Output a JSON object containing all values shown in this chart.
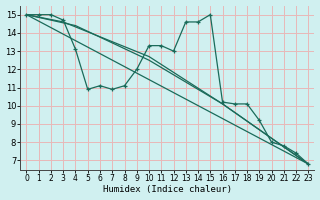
{
  "xlabel": "Humidex (Indice chaleur)",
  "xlim": [
    -0.5,
    23.5
  ],
  "ylim": [
    6.5,
    15.5
  ],
  "yticks": [
    7,
    8,
    9,
    10,
    11,
    12,
    13,
    14,
    15
  ],
  "xticks": [
    0,
    1,
    2,
    3,
    4,
    5,
    6,
    7,
    8,
    9,
    10,
    11,
    12,
    13,
    14,
    15,
    16,
    17,
    18,
    19,
    20,
    21,
    22,
    23
  ],
  "bg_color": "#d0f0f0",
  "grid_color": "#e8b8b8",
  "line_color": "#1a6b5a",
  "zigzag": {
    "x": [
      0,
      1,
      2,
      3,
      4,
      5,
      6,
      7,
      8,
      9,
      10,
      11,
      12,
      13,
      14,
      15,
      16,
      17,
      18,
      19,
      20,
      21,
      22,
      23
    ],
    "y": [
      15.0,
      15.0,
      15.0,
      14.7,
      13.1,
      10.9,
      11.1,
      10.9,
      11.1,
      12.0,
      13.3,
      13.3,
      13.0,
      14.6,
      14.6,
      15.0,
      10.2,
      10.1,
      10.1,
      9.2,
      8.0,
      7.8,
      7.4,
      6.8
    ]
  },
  "trend_lines": [
    {
      "x": [
        0,
        23
      ],
      "y": [
        15.0,
        6.8
      ]
    },
    {
      "x": [
        0,
        3,
        10,
        16,
        23
      ],
      "y": [
        15.0,
        14.6,
        12.7,
        10.1,
        6.8
      ]
    },
    {
      "x": [
        0,
        4,
        10,
        16,
        23
      ],
      "y": [
        15.0,
        14.4,
        12.5,
        10.1,
        6.8
      ]
    }
  ]
}
